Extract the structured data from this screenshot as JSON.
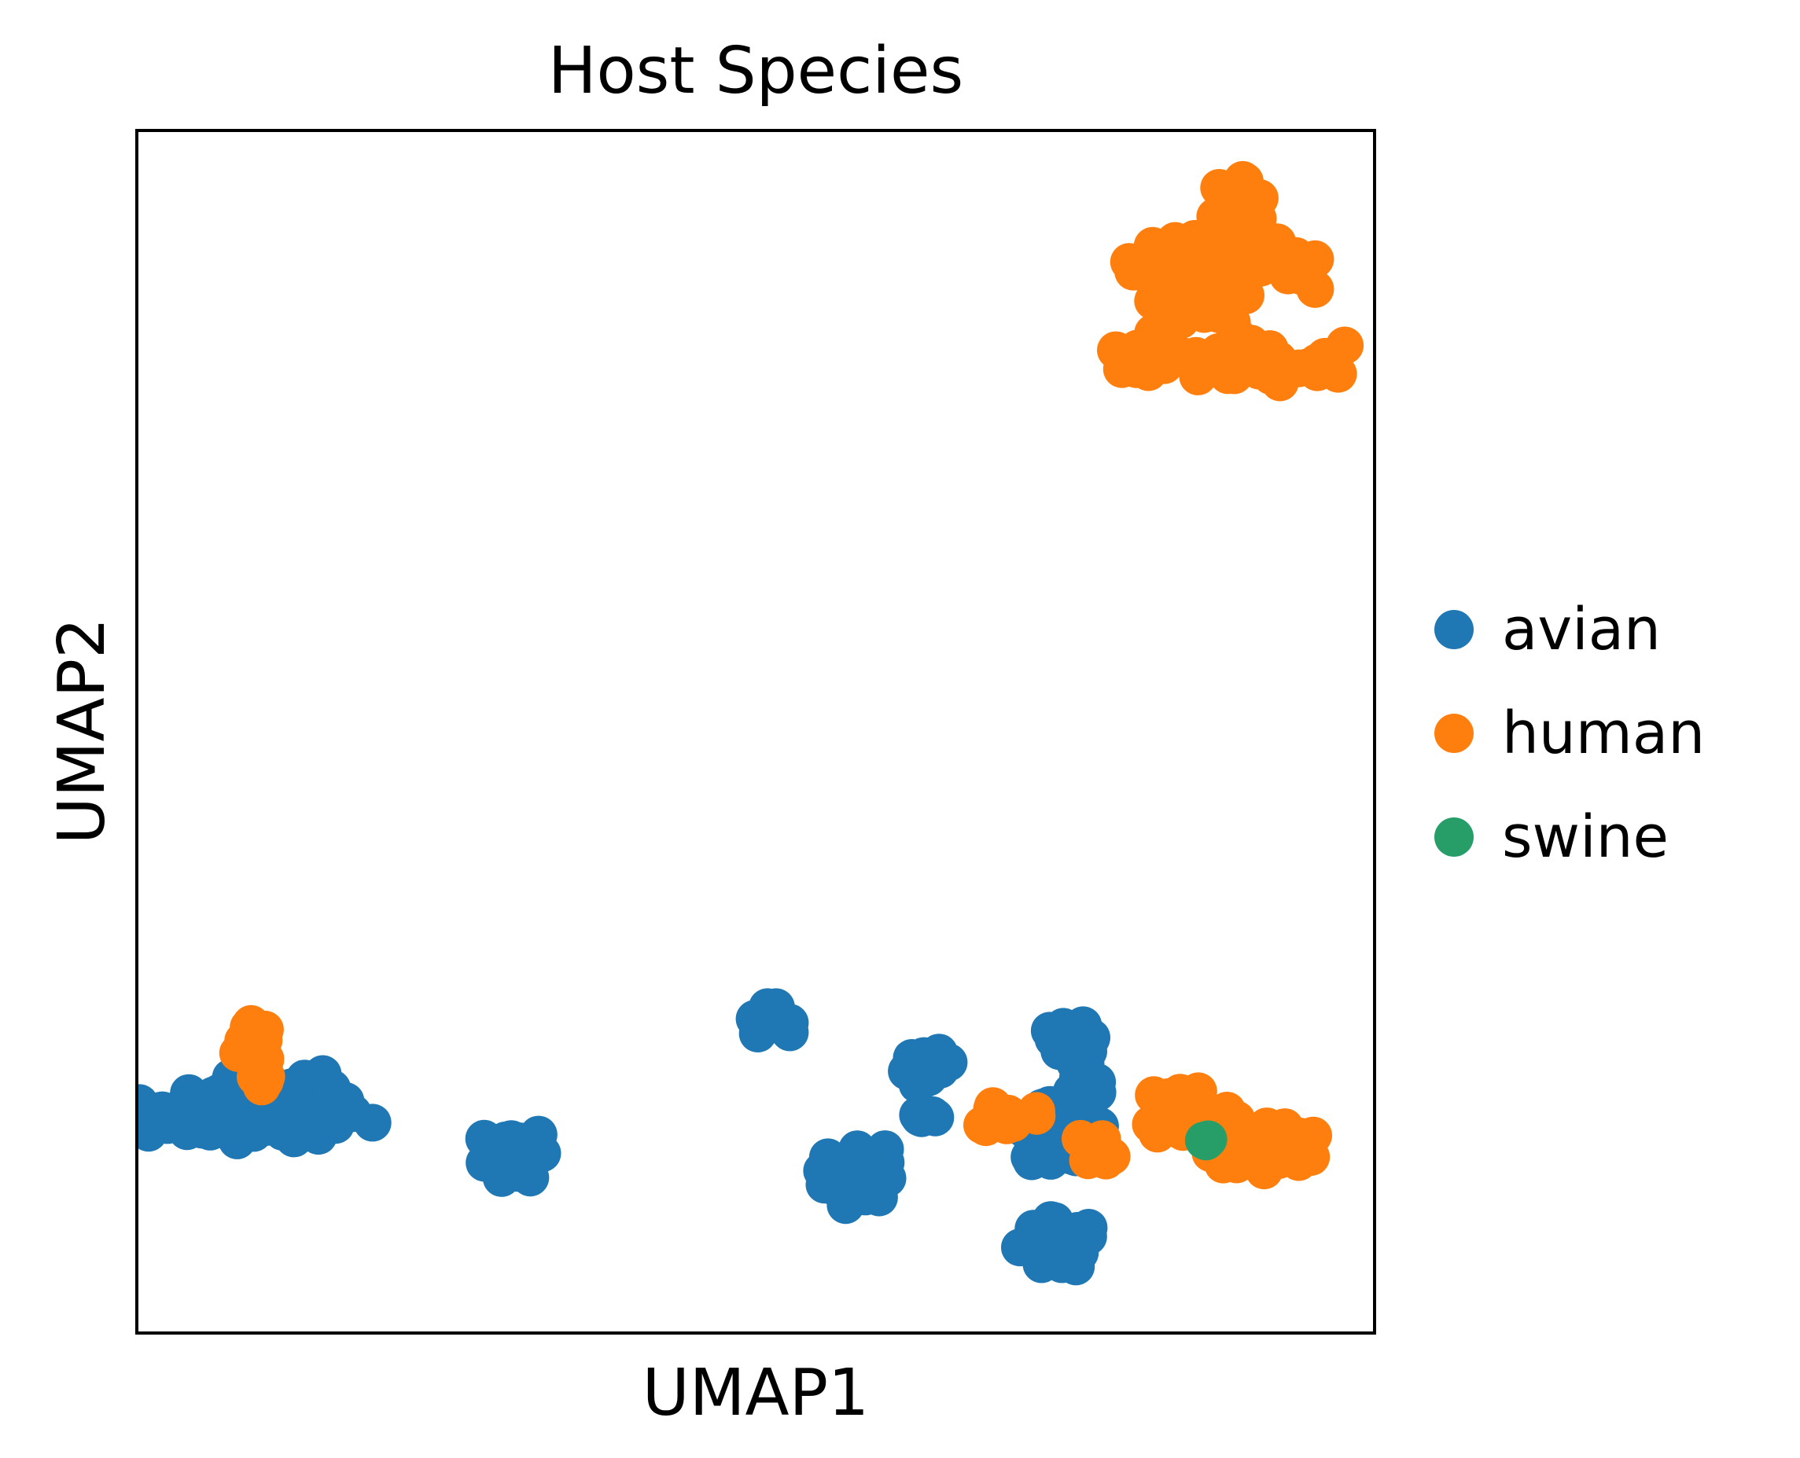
{
  "chart_data": {
    "type": "scatter",
    "title": "Host Species",
    "xlabel": "UMAP1",
    "ylabel": "UMAP2",
    "xlim": [
      0,
      10
    ],
    "ylim": [
      0,
      10
    ],
    "grid": false,
    "ticks": false,
    "legend_placement": "right",
    "point_size": "large",
    "series": [
      {
        "name": "avian",
        "color": "#1f77b4",
        "clusters": [
          {
            "cx": 0.95,
            "cy": 1.8,
            "sx": 0.45,
            "sy": 0.09,
            "n": 110
          },
          {
            "cx": 1.2,
            "cy": 2.05,
            "sx": 0.2,
            "sy": 0.07,
            "n": 20
          },
          {
            "cx": 3.07,
            "cy": 1.5,
            "sx": 0.12,
            "sy": 0.1,
            "n": 55
          },
          {
            "cx": 5.1,
            "cy": 2.6,
            "sx": 0.08,
            "sy": 0.05,
            "n": 18
          },
          {
            "cx": 5.8,
            "cy": 1.32,
            "sx": 0.12,
            "sy": 0.12,
            "n": 50
          },
          {
            "cx": 6.4,
            "cy": 2.2,
            "sx": 0.09,
            "sy": 0.06,
            "n": 18
          },
          {
            "cx": 6.37,
            "cy": 1.8,
            "sx": 0.06,
            "sy": 0.03,
            "n": 6
          },
          {
            "cx": 7.55,
            "cy": 2.45,
            "sx": 0.1,
            "sy": 0.05,
            "n": 25
          },
          {
            "cx": 7.65,
            "cy": 2.05,
            "sx": 0.06,
            "sy": 0.15,
            "n": 18
          },
          {
            "cx": 7.35,
            "cy": 1.8,
            "sx": 0.1,
            "sy": 0.05,
            "n": 10
          },
          {
            "cx": 7.45,
            "cy": 1.5,
            "sx": 0.15,
            "sy": 0.06,
            "n": 25
          },
          {
            "cx": 7.45,
            "cy": 0.72,
            "sx": 0.15,
            "sy": 0.1,
            "n": 55
          }
        ]
      },
      {
        "name": "human",
        "color": "#ff7f0e",
        "clusters": [
          {
            "cx": 0.95,
            "cy": 2.4,
            "sx": 0.06,
            "sy": 0.08,
            "n": 10
          },
          {
            "cx": 1.0,
            "cy": 2.15,
            "sx": 0.04,
            "sy": 0.06,
            "n": 6
          },
          {
            "cx": 8.65,
            "cy": 8.8,
            "sx": 0.2,
            "sy": 0.22,
            "n": 60
          },
          {
            "cx": 8.3,
            "cy": 8.95,
            "sx": 0.15,
            "sy": 0.06,
            "n": 18
          },
          {
            "cx": 8.9,
            "cy": 9.35,
            "sx": 0.12,
            "sy": 0.15,
            "n": 22
          },
          {
            "cx": 9.3,
            "cy": 8.85,
            "sx": 0.1,
            "sy": 0.1,
            "n": 14
          },
          {
            "cx": 8.95,
            "cy": 8.1,
            "sx": 0.1,
            "sy": 0.12,
            "n": 12
          },
          {
            "cx": 8.1,
            "cy": 8.1,
            "sx": 0.12,
            "sy": 0.05,
            "n": 14
          },
          {
            "cx": 8.95,
            "cy": 8.05,
            "sx": 0.4,
            "sy": 0.08,
            "n": 45
          },
          {
            "cx": 8.5,
            "cy": 1.85,
            "sx": 0.18,
            "sy": 0.12,
            "n": 45
          },
          {
            "cx": 9.15,
            "cy": 1.55,
            "sx": 0.22,
            "sy": 0.09,
            "n": 50
          },
          {
            "cx": 7.05,
            "cy": 1.8,
            "sx": 0.1,
            "sy": 0.06,
            "n": 12
          },
          {
            "cx": 7.8,
            "cy": 1.55,
            "sx": 0.08,
            "sy": 0.06,
            "n": 8
          }
        ]
      },
      {
        "name": "swine",
        "color": "#279e68",
        "clusters": [
          {
            "cx": 8.62,
            "cy": 1.62,
            "sx": 0.02,
            "sy": 0.02,
            "n": 3
          }
        ]
      }
    ]
  }
}
